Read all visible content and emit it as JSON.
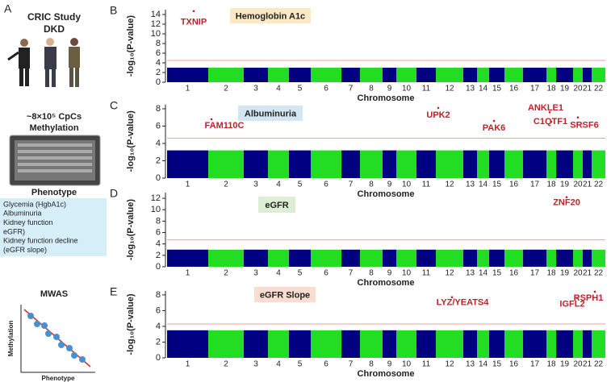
{
  "panel_a": {
    "letter": "A",
    "cohort": "CRIC Study",
    "group": "DKD",
    "array": "~8×10⁵ CpCs",
    "array_sub": "Methylation",
    "phenotype_title": "Phenotype",
    "phenotypes": [
      "Glycemia (HgbA1c)",
      "Albuminuria",
      "Kidney function",
      "eGFR)",
      "Kidney function decline",
      "(eGFR slope)"
    ],
    "mwas": "MWAS",
    "x_label": "Phenotype",
    "y_label": "Methylation"
  },
  "chart_data": [
    {
      "type": "manhattan",
      "panel": "B",
      "title": "Hemoglobin A1c",
      "title_color": "#fbe8c4",
      "x_label": "Chromosome",
      "y_label": "-log₁₀(P-value)",
      "categories": [
        "1",
        "2",
        "3",
        "4",
        "5",
        "6",
        "7",
        "8",
        "9",
        "10",
        "11",
        "12",
        "13",
        "14",
        "15",
        "16",
        "17",
        "18",
        "19",
        "20",
        "21",
        "22"
      ],
      "values": [
        3,
        3,
        3,
        3,
        3,
        3,
        3,
        3,
        3,
        3,
        3,
        3,
        3,
        3,
        3,
        3,
        3,
        3,
        3,
        3,
        3,
        3
      ],
      "colors": [
        "#000080",
        "#22dd22"
      ],
      "ylim": [
        0,
        15
      ],
      "yticks": [
        0,
        2,
        4,
        6,
        8,
        10,
        12,
        14
      ],
      "threshold": 4.5,
      "threshold_color": "#e88080",
      "hits": [
        {
          "label": "TXNIP",
          "chromosome": "1",
          "value": 14.7
        }
      ],
      "hit_color": "#c0202a"
    },
    {
      "type": "manhattan",
      "panel": "C",
      "title": "Albuminuria",
      "title_color": "#d3e6f3",
      "x_label": "Chromosome",
      "y_label": "-log₁₀(P-value)",
      "categories": [
        "1",
        "2",
        "3",
        "4",
        "5",
        "6",
        "7",
        "8",
        "9",
        "10",
        "11",
        "12",
        "13",
        "14",
        "15",
        "16",
        "17",
        "18",
        "19",
        "20",
        "21",
        "22"
      ],
      "values": [
        3.2,
        3.2,
        3.2,
        3.2,
        3.2,
        3.2,
        3.2,
        3.2,
        3.2,
        3.2,
        3.2,
        3.2,
        3.2,
        3.2,
        3.2,
        3.2,
        3.2,
        3.2,
        3.2,
        3.2,
        3.2,
        3.2
      ],
      "colors": [
        "#000080",
        "#22dd22"
      ],
      "ylim": [
        0,
        8.5
      ],
      "yticks": [
        0,
        2,
        4,
        6,
        8
      ],
      "threshold": 4.6,
      "threshold_color": "#e88080",
      "hits": [
        {
          "label": "FAM110C",
          "chromosome": "2",
          "value": 6.8
        },
        {
          "label": "UPK2",
          "chromosome": "11",
          "value": 8.1
        },
        {
          "label": "PAK6",
          "chromosome": "15",
          "value": 6.6
        },
        {
          "label": "ANKLE1",
          "chromosome": "19",
          "value": 7.6
        },
        {
          "label": "C1QTF1",
          "chromosome": "18",
          "value": 6.5
        },
        {
          "label": "SRSF6",
          "chromosome": "20",
          "value": 7.0
        }
      ],
      "hit_color": "#c0202a"
    },
    {
      "type": "manhattan",
      "panel": "D",
      "title": "eGFR",
      "title_color": "#dcefd5",
      "x_label": "Chromosome",
      "y_label": "-log₁₀(P-value)",
      "categories": [
        "1",
        "2",
        "3",
        "4",
        "5",
        "6",
        "7",
        "8",
        "9",
        "10",
        "11",
        "12",
        "13",
        "14",
        "15",
        "16",
        "17",
        "18",
        "19",
        "20",
        "21",
        "22"
      ],
      "values": [
        3,
        3,
        3,
        3,
        3,
        3,
        3,
        3,
        3,
        3,
        3,
        3,
        3,
        3,
        3,
        3,
        3,
        3,
        3,
        3,
        3,
        3
      ],
      "colors": [
        "#000080",
        "#22dd22"
      ],
      "ylim": [
        0,
        13
      ],
      "yticks": [
        0,
        2,
        4,
        6,
        8,
        10,
        12
      ],
      "threshold": 4.7,
      "threshold_color": "#e88080",
      "hits": [
        {
          "label": "ZNF20",
          "chromosome": "19",
          "value": 12.2
        }
      ],
      "hit_color": "#c0202a"
    },
    {
      "type": "manhattan",
      "panel": "E",
      "title": "eGFR Slope",
      "title_color": "#fbdcd0",
      "x_label": "Chromosome",
      "y_label": "-log₁₀(P-value)",
      "categories": [
        "1",
        "2",
        "3",
        "4",
        "5",
        "6",
        "7",
        "8",
        "9",
        "10",
        "11",
        "12",
        "13",
        "14",
        "15",
        "16",
        "17",
        "18",
        "19",
        "20",
        "21",
        "22"
      ],
      "values": [
        3.5,
        3.5,
        3.5,
        3.5,
        3.5,
        3.5,
        3.5,
        3.5,
        3.5,
        3.5,
        3.5,
        3.5,
        3.5,
        3.5,
        3.5,
        3.5,
        3.5,
        3.5,
        3.5,
        3.5,
        3.5,
        3.5
      ],
      "colors": [
        "#000080",
        "#22dd22"
      ],
      "ylim": [
        0,
        8.5
      ],
      "yticks": [
        0,
        2,
        4,
        6,
        8
      ],
      "threshold": 4.3,
      "threshold_color": "#e88080",
      "hits": [
        {
          "label": "LYZ/YEATS4",
          "chromosome": "12",
          "value": 7.7
        },
        {
          "label": "IGFL2",
          "chromosome": "19",
          "value": 7.6
        },
        {
          "label": "RSPH1",
          "chromosome": "21",
          "value": 8.4
        }
      ],
      "hit_color": "#c0202a"
    }
  ]
}
